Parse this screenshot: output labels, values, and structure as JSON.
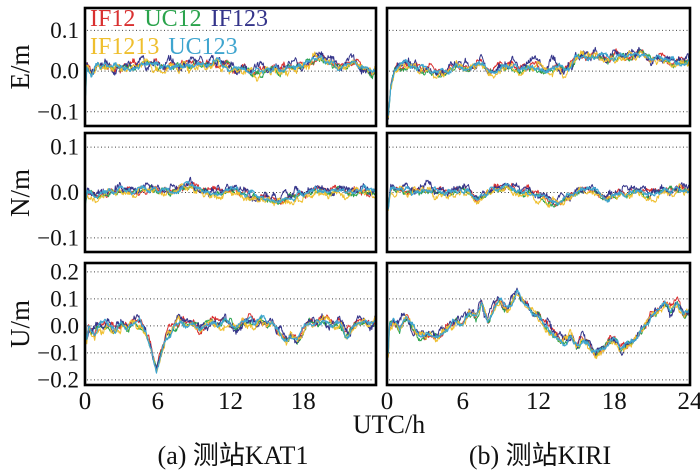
{
  "figure_title": "",
  "chart_data": {
    "type": "line",
    "xlabel": "UTC/h",
    "x_range": [
      0,
      24
    ],
    "grid": "horizontal-dotted",
    "legend_position": "top-left-inside-first-panel",
    "series": [
      {
        "name": "IF12",
        "color": "#D93030"
      },
      {
        "name": "UC12",
        "color": "#2AA34C"
      },
      {
        "name": "IF123",
        "color": "#34348A"
      },
      {
        "name": "IF1213",
        "color": "#EFBF2E"
      },
      {
        "name": "UC123",
        "color": "#3FA5CF"
      }
    ],
    "rows": [
      {
        "ylabel": "E/m",
        "ticks": [
          0.1,
          0.0,
          -0.1
        ],
        "tick_labels": [
          "0.1",
          "0.0",
          "−0.1"
        ],
        "ymax": 0.155,
        "ymin": -0.135,
        "noise_amp": 0.01
      },
      {
        "ylabel": "N/m",
        "ticks": [
          0.1,
          0.0,
          -0.1
        ],
        "tick_labels": [
          "0.1",
          "0.0",
          "−0.1"
        ],
        "ymax": 0.131,
        "ymin": -0.131,
        "noise_amp": 0.008
      },
      {
        "ylabel": "U/m",
        "ticks": [
          0.2,
          0.1,
          0.0,
          -0.1,
          -0.2
        ],
        "tick_labels": [
          "0.2",
          "0.1",
          "0.0",
          "−0.1",
          "−0.2"
        ],
        "ymax": 0.233,
        "ymin": -0.219,
        "noise_amp": 0.015
      }
    ],
    "columns": [
      {
        "station": "KAT1",
        "caption": "(a) 测站KAT1",
        "x_ticks": [
          0,
          6,
          12,
          18
        ],
        "x_tick_labels": [
          "0",
          "6",
          "12",
          "18"
        ]
      },
      {
        "station": "KIRI",
        "caption": "(b) 测站KIRI",
        "x_ticks": [
          0,
          6,
          12,
          18,
          24
        ],
        "x_tick_labels": [
          "0",
          "6",
          "12",
          "18",
          "24"
        ]
      }
    ],
    "panels": {
      "KAT1": {
        "E": {
          "trend": [
            [
              0,
              0.12
            ],
            [
              0.05,
              -0.05
            ],
            [
              0.15,
              0.02
            ],
            [
              0.5,
              -0.01
            ],
            [
              1,
              0.015
            ],
            [
              2,
              0.01
            ],
            [
              3,
              0.005
            ],
            [
              4,
              0.01
            ],
            [
              5,
              0.02
            ],
            [
              6,
              0.015
            ],
            [
              7,
              0.01
            ],
            [
              8,
              0.015
            ],
            [
              9,
              0.02
            ],
            [
              10,
              0.015
            ],
            [
              11,
              0.02
            ],
            [
              12,
              0.01
            ],
            [
              13,
              0.005
            ],
            [
              14,
              0.0
            ],
            [
              15,
              0.005
            ],
            [
              16,
              0.0
            ],
            [
              17,
              0.01
            ],
            [
              18,
              0.015
            ],
            [
              19,
              0.03
            ],
            [
              19.5,
              0.035
            ],
            [
              20,
              0.02
            ],
            [
              21,
              0.015
            ],
            [
              22,
              0.02
            ],
            [
              23,
              0.01
            ],
            [
              23.7,
              -0.01
            ],
            [
              24,
              0.0
            ]
          ]
        },
        "N": {
          "trend": [
            [
              0,
              0.1
            ],
            [
              0.05,
              -0.02
            ],
            [
              0.2,
              0.0
            ],
            [
              1,
              -0.01
            ],
            [
              2,
              0.0
            ],
            [
              3,
              0.005
            ],
            [
              4,
              0.0
            ],
            [
              5,
              0.01
            ],
            [
              5.5,
              0.015
            ],
            [
              6,
              0.005
            ],
            [
              7,
              0.0
            ],
            [
              8,
              0.01
            ],
            [
              8.7,
              0.02
            ],
            [
              9.3,
              0.01
            ],
            [
              10,
              0.005
            ],
            [
              11,
              0.0
            ],
            [
              12,
              0.005
            ],
            [
              13,
              0.0
            ],
            [
              14,
              -0.01
            ],
            [
              15,
              -0.015
            ],
            [
              16,
              -0.02
            ],
            [
              17,
              -0.01
            ],
            [
              18,
              -0.005
            ],
            [
              19,
              0.005
            ],
            [
              20,
              0.0
            ],
            [
              21,
              0.005
            ],
            [
              22,
              0.0
            ],
            [
              23,
              0.005
            ],
            [
              24,
              0.0
            ]
          ]
        },
        "U": {
          "trend": [
            [
              0,
              0.27
            ],
            [
              0.06,
              0.05
            ],
            [
              0.12,
              -0.06
            ],
            [
              0.3,
              0.0
            ],
            [
              0.8,
              -0.03
            ],
            [
              1.2,
              0.01
            ],
            [
              2,
              0.0
            ],
            [
              2.5,
              -0.02
            ],
            [
              3,
              0.01
            ],
            [
              3.5,
              -0.01
            ],
            [
              4,
              0.02
            ],
            [
              4.5,
              0.015
            ],
            [
              5,
              -0.02
            ],
            [
              5.4,
              -0.08
            ],
            [
              5.9,
              -0.16
            ],
            [
              6.3,
              -0.1
            ],
            [
              6.7,
              -0.04
            ],
            [
              7.2,
              -0.01
            ],
            [
              7.8,
              0.02
            ],
            [
              8.5,
              0.0
            ],
            [
              9,
              0.015
            ],
            [
              9.5,
              -0.02
            ],
            [
              10,
              0.01
            ],
            [
              10.5,
              0.02
            ],
            [
              11,
              0.0
            ],
            [
              11.5,
              0.02
            ],
            [
              12,
              0.01
            ],
            [
              12.5,
              -0.01
            ],
            [
              13,
              0.01
            ],
            [
              13.5,
              0.02
            ],
            [
              14,
              0.01
            ],
            [
              14.5,
              0.03
            ],
            [
              15,
              0.0
            ],
            [
              15.5,
              0.01
            ],
            [
              16,
              -0.02
            ],
            [
              16.5,
              -0.05
            ],
            [
              17,
              -0.04
            ],
            [
              17.5,
              -0.055
            ],
            [
              18,
              -0.02
            ],
            [
              18.5,
              0.02
            ],
            [
              19,
              0.01
            ],
            [
              19.5,
              0.02
            ],
            [
              20,
              0.015
            ],
            [
              20.5,
              0.0
            ],
            [
              21,
              0.01
            ],
            [
              21.5,
              -0.03
            ],
            [
              22,
              -0.01
            ],
            [
              22.5,
              0.015
            ],
            [
              23,
              0.02
            ],
            [
              23.5,
              0.0
            ],
            [
              24,
              0.02
            ]
          ]
        }
      },
      "KIRI": {
        "E": {
          "trend": [
            [
              0,
              0.05
            ],
            [
              0.06,
              -0.13
            ],
            [
              0.3,
              -0.04
            ],
            [
              0.6,
              0.0
            ],
            [
              1,
              0.01
            ],
            [
              1.5,
              0.015
            ],
            [
              2,
              0.01
            ],
            [
              3,
              0.005
            ],
            [
              3.5,
              0.0
            ],
            [
              4,
              -0.005
            ],
            [
              4.5,
              -0.01
            ],
            [
              5,
              0.005
            ],
            [
              5.5,
              0.015
            ],
            [
              6,
              0.01
            ],
            [
              6.5,
              0.005
            ],
            [
              7,
              0.015
            ],
            [
              7.5,
              0.02
            ],
            [
              8,
              0.005
            ],
            [
              8.5,
              0.0
            ],
            [
              9,
              0.01
            ],
            [
              9.5,
              0.015
            ],
            [
              10,
              0.01
            ],
            [
              10.5,
              0.005
            ],
            [
              11,
              0.01
            ],
            [
              11.5,
              0.015
            ],
            [
              12,
              0.01
            ],
            [
              12.5,
              0.0
            ],
            [
              13,
              0.005
            ],
            [
              13.5,
              0.01
            ],
            [
              14,
              0.005
            ],
            [
              14.5,
              0.01
            ],
            [
              15,
              0.035
            ],
            [
              15.5,
              0.04
            ],
            [
              16,
              0.035
            ],
            [
              16.5,
              0.04
            ],
            [
              17,
              0.035
            ],
            [
              17.5,
              0.03
            ],
            [
              18,
              0.035
            ],
            [
              18.5,
              0.04
            ],
            [
              19,
              0.035
            ],
            [
              19.5,
              0.04
            ],
            [
              20,
              0.045
            ],
            [
              20.5,
              0.035
            ],
            [
              21,
              0.03
            ],
            [
              21.5,
              0.035
            ],
            [
              22,
              0.03
            ],
            [
              22.5,
              0.02
            ],
            [
              23,
              0.025
            ],
            [
              23.5,
              0.02
            ],
            [
              24,
              0.025
            ]
          ]
        },
        "N": {
          "trend": [
            [
              0,
              0.08
            ],
            [
              0.06,
              -0.04
            ],
            [
              0.3,
              0.01
            ],
            [
              1,
              0.005
            ],
            [
              2,
              0.0
            ],
            [
              3,
              0.005
            ],
            [
              4,
              0.0
            ],
            [
              4.5,
              -0.005
            ],
            [
              5,
              0.0
            ],
            [
              6,
              0.005
            ],
            [
              6.5,
              0.0
            ],
            [
              7,
              -0.015
            ],
            [
              7.5,
              -0.01
            ],
            [
              8,
              0.0
            ],
            [
              8.5,
              0.005
            ],
            [
              9,
              0.01
            ],
            [
              9.5,
              0.015
            ],
            [
              10,
              0.005
            ],
            [
              10.5,
              0.0
            ],
            [
              11,
              0.005
            ],
            [
              11.5,
              0.0
            ],
            [
              12,
              -0.005
            ],
            [
              12.5,
              -0.01
            ],
            [
              13,
              -0.02
            ],
            [
              13.5,
              -0.025
            ],
            [
              14,
              -0.015
            ],
            [
              14.5,
              -0.01
            ],
            [
              15,
              0.0
            ],
            [
              15.5,
              0.01
            ],
            [
              16,
              0.005
            ],
            [
              16.5,
              0.0
            ],
            [
              17,
              -0.01
            ],
            [
              17.5,
              -0.015
            ],
            [
              18,
              -0.005
            ],
            [
              18.5,
              0.0
            ],
            [
              19,
              -0.005
            ],
            [
              19.5,
              0.0
            ],
            [
              20,
              0.005
            ],
            [
              20.5,
              0.0
            ],
            [
              21,
              -0.005
            ],
            [
              21.5,
              0.0
            ],
            [
              22,
              0.005
            ],
            [
              23,
              0.01
            ],
            [
              23.5,
              0.005
            ],
            [
              24,
              0.005
            ]
          ]
        },
        "U": {
          "trend": [
            [
              0,
              0.18
            ],
            [
              0.06,
              -0.16
            ],
            [
              0.2,
              0.0
            ],
            [
              0.5,
              0.02
            ],
            [
              1,
              -0.01
            ],
            [
              1.5,
              0.03
            ],
            [
              2,
              0.0
            ],
            [
              2.5,
              -0.03
            ],
            [
              3,
              -0.04
            ],
            [
              3.5,
              -0.03
            ],
            [
              4,
              -0.04
            ],
            [
              4.5,
              -0.02
            ],
            [
              5,
              0.0
            ],
            [
              5.5,
              0.02
            ],
            [
              6,
              0.01
            ],
            [
              6.5,
              0.05
            ],
            [
              7,
              0.03
            ],
            [
              7.5,
              0.08
            ],
            [
              8,
              0.02
            ],
            [
              8.5,
              0.07
            ],
            [
              9,
              0.09
            ],
            [
              9.5,
              0.06
            ],
            [
              10,
              0.1
            ],
            [
              10.3,
              0.13
            ],
            [
              10.7,
              0.1
            ],
            [
              11,
              0.08
            ],
            [
              11.5,
              0.06
            ],
            [
              12,
              0.04
            ],
            [
              12.5,
              0.0
            ],
            [
              13,
              -0.02
            ],
            [
              13.5,
              -0.04
            ],
            [
              14,
              -0.06
            ],
            [
              14.5,
              -0.04
            ],
            [
              15,
              -0.07
            ],
            [
              15.5,
              -0.05
            ],
            [
              16,
              -0.07
            ],
            [
              16.5,
              -0.1
            ],
            [
              17,
              -0.09
            ],
            [
              17.5,
              -0.06
            ],
            [
              18,
              -0.04
            ],
            [
              18.5,
              -0.09
            ],
            [
              19,
              -0.07
            ],
            [
              19.5,
              -0.05
            ],
            [
              20,
              -0.02
            ],
            [
              20.5,
              0.0
            ],
            [
              21,
              0.04
            ],
            [
              21.5,
              0.06
            ],
            [
              22,
              0.09
            ],
            [
              22.5,
              0.06
            ],
            [
              23,
              0.09
            ],
            [
              23.5,
              0.04
            ],
            [
              24,
              0.06
            ]
          ]
        }
      }
    }
  }
}
